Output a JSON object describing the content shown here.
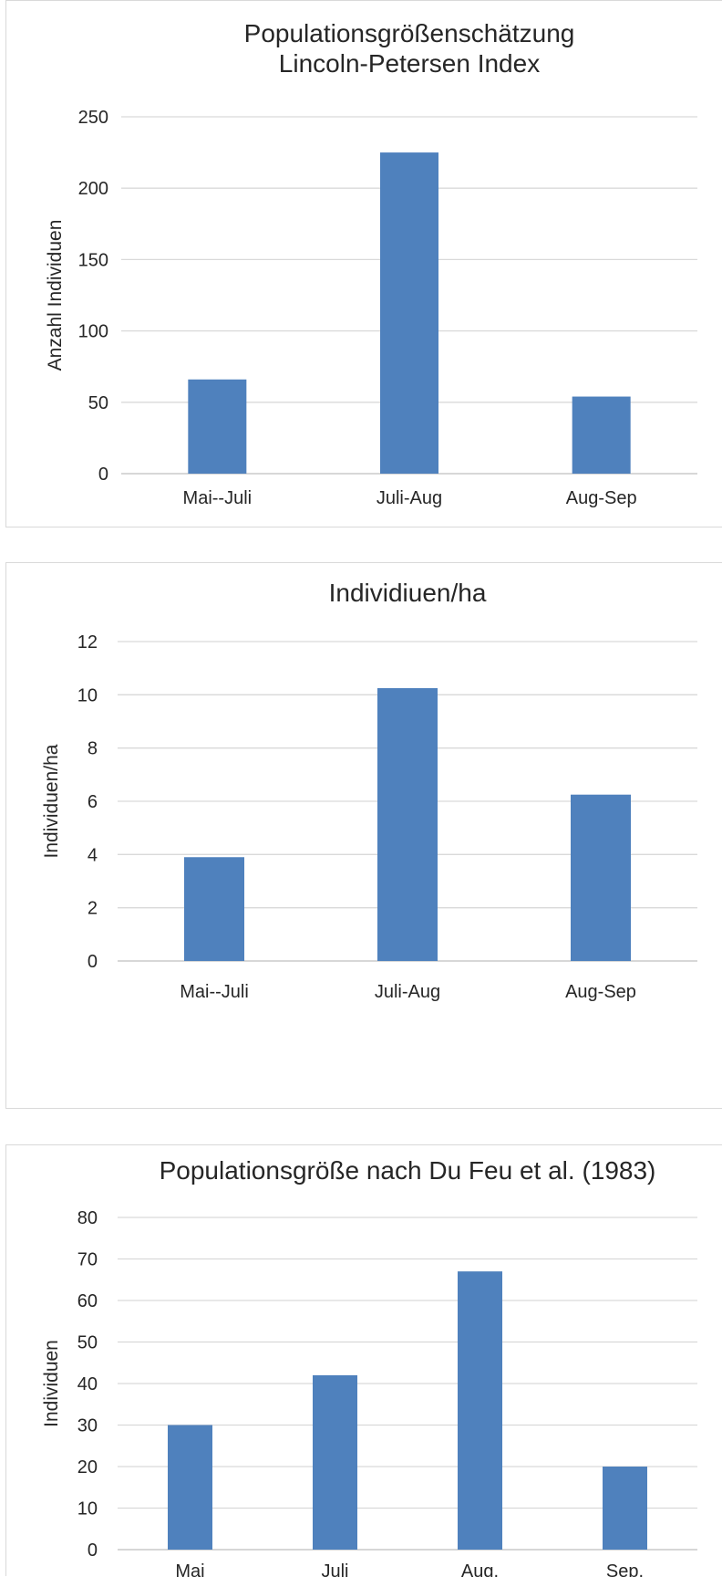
{
  "chart_data": [
    {
      "type": "bar",
      "title_lines": [
        "Populationsgrößenschätzung",
        "Lincoln-Petersen Index"
      ],
      "ylabel": "Anzahl Individuen",
      "xlabel": "",
      "categories": [
        "Mai--Juli",
        "Juli-Aug",
        "Aug-Sep"
      ],
      "values": [
        66,
        225,
        54
      ],
      "ylim": [
        0,
        250
      ],
      "yticks": [
        0,
        50,
        100,
        150,
        200,
        250
      ],
      "grid": true,
      "color": "#4f81bd"
    },
    {
      "type": "bar",
      "title_lines": [
        "Individiuen/ha"
      ],
      "ylabel": "Individuen/ha",
      "xlabel": "",
      "categories": [
        "Mai--Juli",
        "Juli-Aug",
        "Aug-Sep"
      ],
      "values": [
        3.9,
        10.25,
        6.25
      ],
      "ylim": [
        0,
        12
      ],
      "yticks": [
        0,
        2,
        4,
        6,
        8,
        10,
        12
      ],
      "grid": true,
      "color": "#4f81bd"
    },
    {
      "type": "bar",
      "title_lines": [
        "Populationsgröße nach Du Feu et al. (1983)"
      ],
      "ylabel": "Individuen",
      "xlabel": "",
      "categories": [
        "Mai",
        "Juli",
        "Aug.",
        "Sep."
      ],
      "values": [
        30,
        42,
        67,
        20
      ],
      "ylim": [
        0,
        80
      ],
      "yticks": [
        0,
        10,
        20,
        30,
        40,
        50,
        60,
        70,
        80
      ],
      "grid": true,
      "color": "#4f81bd"
    }
  ]
}
